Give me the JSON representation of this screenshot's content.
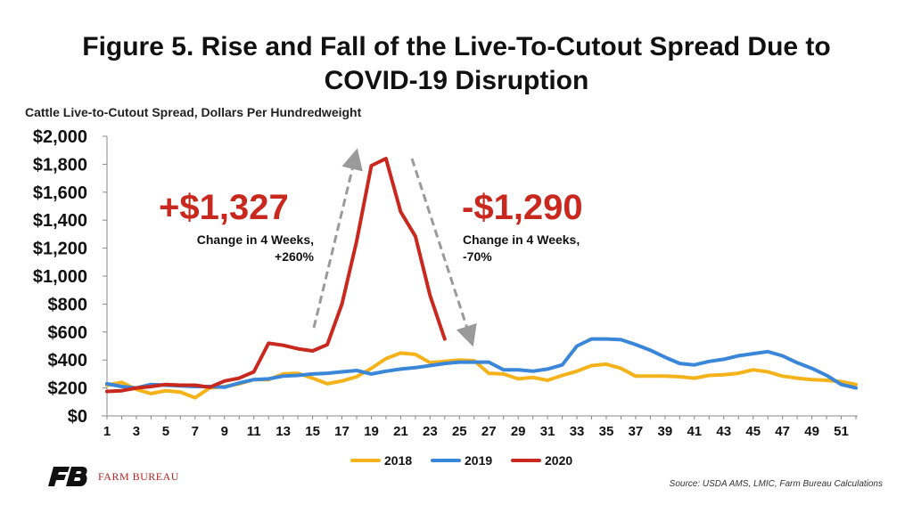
{
  "page": {
    "title_line1": "Figure 5. Rise and Fall of the Live-To-Cutout Spread Due to",
    "title_line2": "COVID-19 Disruption",
    "source": "Source: USDA AMS, LMIC, Farm Bureau Calculations",
    "logo_text": "FARM BUREAU"
  },
  "annotations": {
    "rise_value": "+$1,327",
    "rise_line1": "Change in 4 Weeks,",
    "rise_line2": "+260%",
    "fall_value": "-$1,290",
    "fall_line1": "Change in 4 Weeks,",
    "fall_line2": "-70%",
    "value_color": "#c8281e",
    "arrow_color": "#9a9a9a"
  },
  "chart_data": {
    "type": "line",
    "title": "Figure 5. Rise and Fall of the Live-To-Cutout Spread Due to COVID-19 Disruption",
    "ylabel": "Cattle Live-to-Cutout Spread, Dollars Per Hundredweight",
    "xlabel": "",
    "ylim": [
      0,
      2000
    ],
    "xlim": [
      1,
      52
    ],
    "y_ticks": [
      0,
      200,
      400,
      600,
      800,
      1000,
      1200,
      1400,
      1600,
      1800,
      2000
    ],
    "y_tick_labels": [
      "$0",
      "$200",
      "$400",
      "$600",
      "$800",
      "$1,000",
      "$1,200",
      "$1,400",
      "$1,600",
      "$1,800",
      "$2,000"
    ],
    "x_ticks": [
      1,
      3,
      5,
      7,
      9,
      11,
      13,
      15,
      17,
      19,
      21,
      23,
      25,
      27,
      29,
      31,
      33,
      35,
      37,
      39,
      41,
      43,
      45,
      47,
      49,
      51
    ],
    "x_tick_labels": [
      "1",
      "3",
      "5",
      "7",
      "9",
      "11",
      "13",
      "15",
      "17",
      "19",
      "21",
      "23",
      "25",
      "27",
      "29",
      "31",
      "33",
      "35",
      "37",
      "39",
      "41",
      "43",
      "45",
      "47",
      "49",
      "51"
    ],
    "grid": false,
    "legend_position": "bottom",
    "series": [
      {
        "name": "2018",
        "color": "#f5b31b",
        "x": [
          1,
          2,
          3,
          4,
          5,
          6,
          7,
          8,
          9,
          10,
          11,
          12,
          13,
          14,
          15,
          16,
          17,
          18,
          19,
          20,
          21,
          22,
          23,
          24,
          25,
          26,
          27,
          28,
          29,
          30,
          31,
          32,
          33,
          34,
          35,
          36,
          37,
          38,
          39,
          40,
          41,
          42,
          43,
          44,
          45,
          46,
          47,
          48,
          49,
          50,
          51,
          52
        ],
        "values": [
          220,
          240,
          190,
          160,
          180,
          170,
          130,
          200,
          210,
          230,
          260,
          260,
          300,
          305,
          270,
          230,
          250,
          280,
          340,
          410,
          450,
          440,
          380,
          390,
          400,
          395,
          305,
          300,
          265,
          275,
          255,
          290,
          320,
          360,
          370,
          340,
          285,
          285,
          285,
          280,
          270,
          290,
          295,
          305,
          330,
          315,
          285,
          270,
          260,
          255,
          245,
          225
        ]
      },
      {
        "name": "2019",
        "color": "#3a86d8",
        "x": [
          1,
          2,
          3,
          4,
          5,
          6,
          7,
          8,
          9,
          10,
          11,
          12,
          13,
          14,
          15,
          16,
          17,
          18,
          19,
          20,
          21,
          22,
          23,
          24,
          25,
          26,
          27,
          28,
          29,
          30,
          31,
          32,
          33,
          34,
          35,
          36,
          37,
          38,
          39,
          40,
          41,
          42,
          43,
          44,
          45,
          46,
          47,
          48,
          49,
          50,
          51,
          52
        ],
        "values": [
          230,
          210,
          200,
          225,
          220,
          215,
          210,
          210,
          205,
          235,
          260,
          265,
          285,
          290,
          300,
          305,
          315,
          325,
          300,
          320,
          335,
          345,
          360,
          375,
          385,
          385,
          385,
          330,
          330,
          320,
          335,
          365,
          500,
          550,
          550,
          545,
          510,
          470,
          420,
          375,
          365,
          390,
          405,
          430,
          445,
          460,
          430,
          380,
          340,
          290,
          225,
          200
        ]
      },
      {
        "name": "2020",
        "color": "#c8281e",
        "x": [
          1,
          2,
          3,
          4,
          5,
          6,
          7,
          8,
          9,
          10,
          11,
          12,
          13,
          14,
          15,
          16,
          17,
          18,
          19,
          20,
          21,
          22,
          23,
          24
        ],
        "values": [
          175,
          180,
          200,
          210,
          225,
          220,
          220,
          205,
          250,
          270,
          315,
          520,
          505,
          480,
          465,
          510,
          800,
          1250,
          1790,
          1840,
          1460,
          1285,
          860,
          550
        ]
      }
    ]
  }
}
